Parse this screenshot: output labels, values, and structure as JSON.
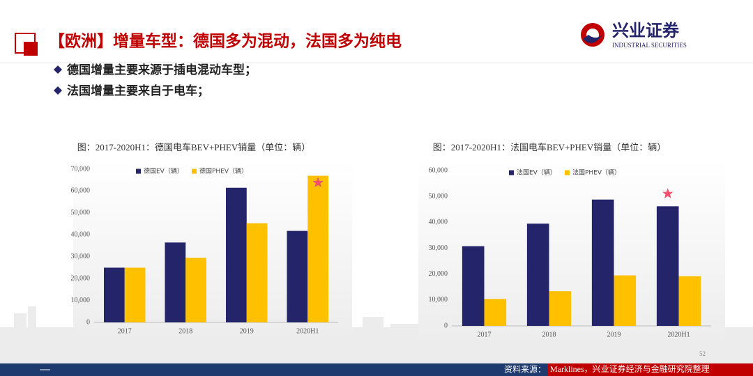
{
  "header": {
    "title": "【欧洲】增量车型：德国多为混动，法国多为纯电",
    "bullets": [
      "德国增量主要来源于插电混动车型；",
      "法国增量主要来自于电车；"
    ],
    "logo_name": "兴业证券",
    "logo_subtitle": "INDUSTRIAL SECURITIES"
  },
  "chart_data": [
    {
      "type": "bar",
      "title": "图：2017-2020H1：德国电车BEV+PHEV销量（单位：辆）",
      "categories": [
        "2017",
        "2018",
        "2019",
        "2020H1"
      ],
      "series": [
        {
          "name": "德国EV（辆）",
          "color": "#24246b",
          "values": [
            25000,
            36500,
            61500,
            41800
          ]
        },
        {
          "name": "德国PHEV（辆）",
          "color": "#ffc000",
          "values": [
            25000,
            29500,
            45300,
            67000
          ]
        }
      ],
      "ylim": [
        0,
        70000
      ],
      "yticks": [
        0,
        {
          "value": 10000,
          "label": "10,000"
        },
        {
          "value": 20000,
          "label": "20,000"
        },
        {
          "value": 30000,
          "label": "30,000"
        },
        {
          "value": 40000,
          "label": "40,000"
        },
        {
          "value": 50000,
          "label": "50,000"
        },
        {
          "value": 60000,
          "label": "60,000"
        },
        {
          "value": 70000,
          "label": "70,000"
        }
      ],
      "legend": "top",
      "grid": false
    },
    {
      "type": "bar",
      "title": "图：2017-2020H1：法国电车BEV+PHEV销量（单位：辆）",
      "categories": [
        "2017",
        "2018",
        "2019",
        "2020H1"
      ],
      "series": [
        {
          "name": "法国EV（辆）",
          "color": "#24246b",
          "values": [
            30800,
            39500,
            48800,
            46200
          ]
        },
        {
          "name": "法国PHEV（辆）",
          "color": "#ffc000",
          "values": [
            10400,
            13400,
            19500,
            19200
          ]
        }
      ],
      "ylim": [
        0,
        60000
      ],
      "yticks": [
        0,
        {
          "value": 10000,
          "label": "10,000"
        },
        {
          "value": 20000,
          "label": "20,000"
        },
        {
          "value": 30000,
          "label": "30,000"
        },
        {
          "value": 40000,
          "label": "40,000"
        },
        {
          "value": 50000,
          "label": "50,000"
        },
        {
          "value": 60000,
          "label": "60,000"
        }
      ],
      "legend": "top",
      "grid": false
    }
  ],
  "footer": {
    "page_number": "52",
    "source_label": "资料来源：",
    "source_text": "Marklines，兴业证券经济与金融研究院整理"
  }
}
